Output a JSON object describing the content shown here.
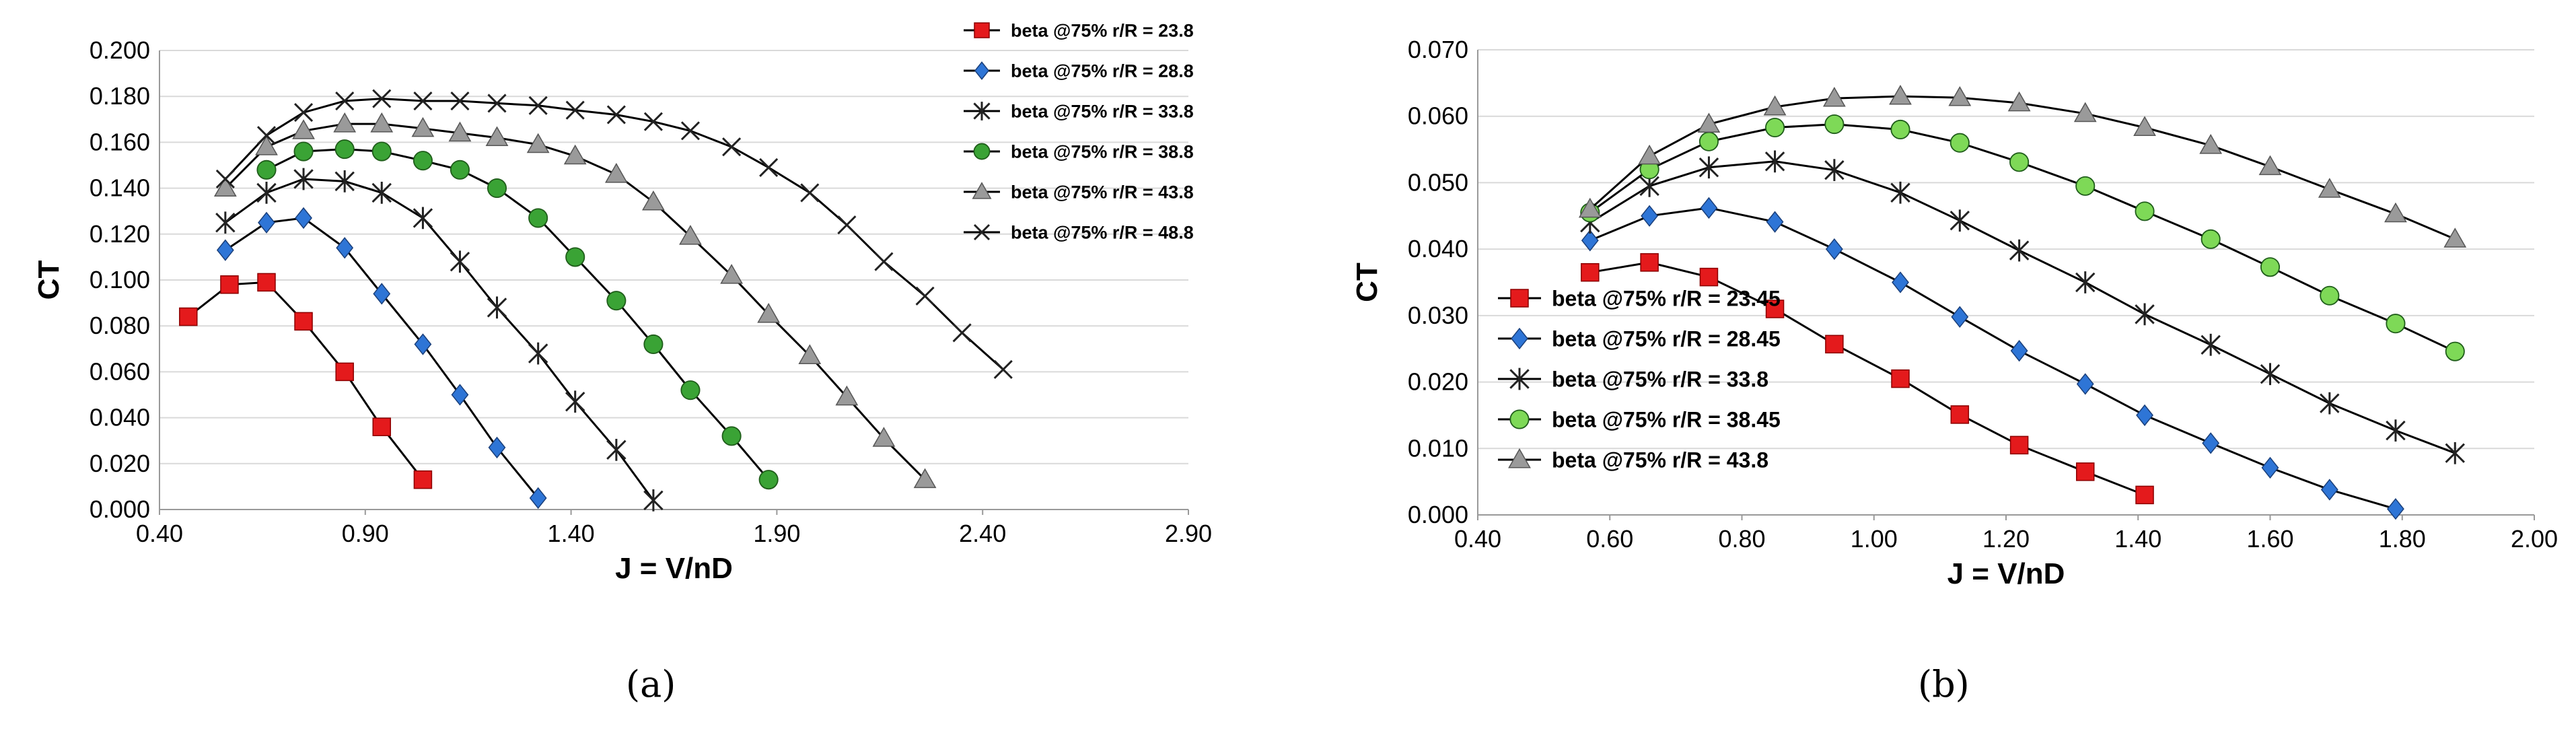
{
  "figure": {
    "panel_labels": [
      "(a)",
      "(b)"
    ]
  },
  "chart_data": [
    {
      "type": "line",
      "xlabel": "J = V/nD",
      "ylabel": "CT",
      "xlim": [
        0.4,
        2.9
      ],
      "ylim": [
        0.0,
        0.2
      ],
      "x_ticks": [
        "0.40",
        "0.90",
        "1.40",
        "1.90",
        "2.40",
        "2.90"
      ],
      "y_ticks": [
        "0.000",
        "0.020",
        "0.040",
        "0.060",
        "0.080",
        "0.100",
        "0.120",
        "0.140",
        "0.160",
        "0.180",
        "0.200"
      ],
      "grid": "horizontal",
      "legend_position": "top-right",
      "series": [
        {
          "name": "beta @75% r/R = 23.8",
          "marker": "square",
          "color": "#e41a1c",
          "x": [
            0.47,
            0.57,
            0.66,
            0.75,
            0.85,
            0.94,
            1.04
          ],
          "y": [
            0.084,
            0.098,
            0.099,
            0.082,
            0.06,
            0.036,
            0.013
          ]
        },
        {
          "name": "beta @75% r/R = 28.8",
          "marker": "diamond",
          "color": "#2e75d6",
          "x": [
            0.56,
            0.66,
            0.75,
            0.85,
            0.94,
            1.04,
            1.13,
            1.22,
            1.32
          ],
          "y": [
            0.113,
            0.125,
            0.127,
            0.114,
            0.094,
            0.072,
            0.05,
            0.027,
            0.005
          ]
        },
        {
          "name": "beta @75% r/R = 33.8",
          "marker": "asterisk",
          "color": "#222222",
          "x": [
            0.56,
            0.66,
            0.75,
            0.85,
            0.94,
            1.04,
            1.13,
            1.22,
            1.32,
            1.41,
            1.51,
            1.6
          ],
          "y": [
            0.125,
            0.138,
            0.144,
            0.143,
            0.138,
            0.127,
            0.108,
            0.088,
            0.068,
            0.047,
            0.026,
            0.004
          ]
        },
        {
          "name": "beta @75% r/R = 38.8",
          "marker": "circle",
          "color": "#3aa335",
          "x": [
            0.66,
            0.75,
            0.85,
            0.94,
            1.04,
            1.13,
            1.22,
            1.32,
            1.41,
            1.51,
            1.6,
            1.69,
            1.79,
            1.88
          ],
          "y": [
            0.148,
            0.156,
            0.157,
            0.156,
            0.152,
            0.148,
            0.14,
            0.127,
            0.11,
            0.091,
            0.072,
            0.052,
            0.032,
            0.013
          ]
        },
        {
          "name": "beta @75% r/R = 43.8",
          "marker": "triangle",
          "color": "#9a9a9a",
          "x": [
            0.56,
            0.66,
            0.75,
            0.85,
            0.94,
            1.04,
            1.13,
            1.22,
            1.32,
            1.41,
            1.51,
            1.6,
            1.69,
            1.79,
            1.88,
            1.98,
            2.07,
            2.16,
            2.26
          ],
          "y": [
            0.14,
            0.158,
            0.165,
            0.168,
            0.168,
            0.166,
            0.164,
            0.162,
            0.159,
            0.154,
            0.146,
            0.134,
            0.119,
            0.102,
            0.085,
            0.067,
            0.049,
            0.031,
            0.013
          ]
        },
        {
          "name": "beta @75% r/R = 48.8",
          "marker": "x",
          "color": "#222222",
          "x": [
            0.56,
            0.66,
            0.75,
            0.85,
            0.94,
            1.04,
            1.13,
            1.22,
            1.32,
            1.41,
            1.51,
            1.6,
            1.69,
            1.79,
            1.88,
            1.98,
            2.07,
            2.16,
            2.26,
            2.35,
            2.45
          ],
          "y": [
            0.144,
            0.163,
            0.173,
            0.178,
            0.179,
            0.178,
            0.178,
            0.177,
            0.176,
            0.174,
            0.172,
            0.169,
            0.165,
            0.158,
            0.149,
            0.138,
            0.124,
            0.108,
            0.093,
            0.077,
            0.061
          ]
        }
      ]
    },
    {
      "type": "line",
      "xlabel": "J = V/nD",
      "ylabel": "CT",
      "xlim": [
        0.4,
        2.0
      ],
      "ylim": [
        0.0,
        0.07
      ],
      "x_ticks": [
        "0.40",
        "0.60",
        "0.80",
        "1.00",
        "1.20",
        "1.40",
        "1.60",
        "1.80",
        "2.00"
      ],
      "y_ticks": [
        "0.000",
        "0.010",
        "0.020",
        "0.030",
        "0.040",
        "0.050",
        "0.060",
        "0.070"
      ],
      "grid": "horizontal",
      "legend_position": "bottom-left",
      "series": [
        {
          "name": "beta @75% r/R = 23.45",
          "marker": "square",
          "color": "#e41a1c",
          "x": [
            0.57,
            0.66,
            0.75,
            0.85,
            0.94,
            1.04,
            1.13,
            1.22,
            1.32,
            1.41
          ],
          "y": [
            0.0365,
            0.038,
            0.0358,
            0.031,
            0.0257,
            0.0205,
            0.0151,
            0.0105,
            0.0065,
            0.003
          ]
        },
        {
          "name": "beta @75% r/R = 28.45",
          "marker": "diamond",
          "color": "#2e75d6",
          "x": [
            0.57,
            0.66,
            0.75,
            0.85,
            0.94,
            1.04,
            1.13,
            1.22,
            1.32,
            1.41,
            1.51,
            1.6,
            1.69,
            1.79
          ],
          "y": [
            0.0413,
            0.045,
            0.0462,
            0.0441,
            0.04,
            0.035,
            0.0298,
            0.0247,
            0.0197,
            0.015,
            0.0108,
            0.0071,
            0.0038,
            0.0009
          ]
        },
        {
          "name": "beta @75% r/R = 33.8",
          "marker": "asterisk",
          "color": "#222222",
          "x": [
            0.57,
            0.66,
            0.75,
            0.85,
            0.94,
            1.04,
            1.13,
            1.22,
            1.32,
            1.41,
            1.51,
            1.6,
            1.69,
            1.79,
            1.88
          ],
          "y": [
            0.044,
            0.0495,
            0.0523,
            0.0532,
            0.0519,
            0.0485,
            0.0443,
            0.0398,
            0.035,
            0.0302,
            0.0256,
            0.0212,
            0.0168,
            0.0127,
            0.0093
          ]
        },
        {
          "name": "beta @75% r/R = 38.45",
          "marker": "circle",
          "color": "#7ed957",
          "x": [
            0.57,
            0.66,
            0.75,
            0.85,
            0.94,
            1.04,
            1.13,
            1.22,
            1.32,
            1.41,
            1.51,
            1.6,
            1.69,
            1.79,
            1.88
          ],
          "y": [
            0.0455,
            0.052,
            0.0562,
            0.0583,
            0.0588,
            0.058,
            0.056,
            0.0531,
            0.0495,
            0.0457,
            0.0415,
            0.0373,
            0.033,
            0.0288,
            0.0246
          ]
        },
        {
          "name": "beta @75% r/R = 43.8",
          "marker": "triangle",
          "color": "#9a9a9a",
          "x": [
            0.57,
            0.66,
            0.75,
            0.85,
            0.94,
            1.04,
            1.13,
            1.22,
            1.32,
            1.41,
            1.51,
            1.6,
            1.69,
            1.79,
            1.88
          ],
          "y": [
            0.046,
            0.054,
            0.0588,
            0.0614,
            0.0627,
            0.063,
            0.0628,
            0.062,
            0.0604,
            0.0583,
            0.0556,
            0.0524,
            0.049,
            0.0453,
            0.0415
          ]
        }
      ]
    }
  ]
}
